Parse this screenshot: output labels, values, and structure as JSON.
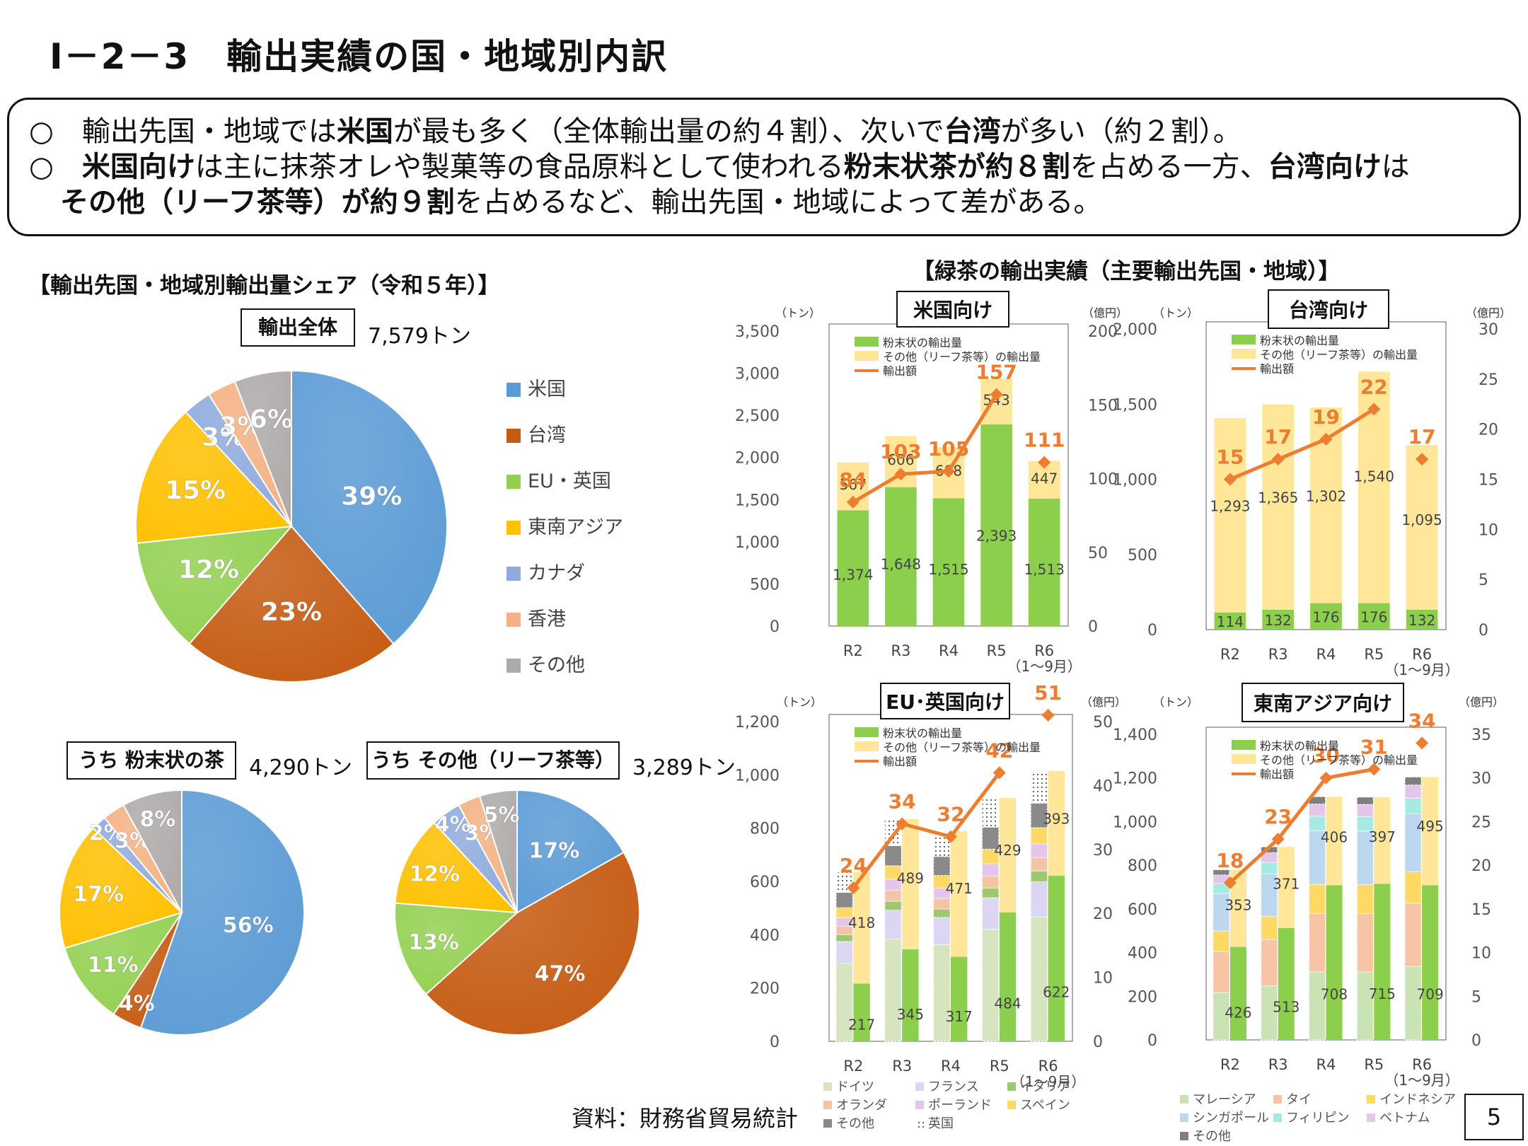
{
  "title": "Ⅰ－2－3　輸出実績の国・地域別内訳",
  "summary": {
    "l1": [
      {
        "t": "○　輸出先国・地域では",
        "b": false
      },
      {
        "t": "米国",
        "b": true
      },
      {
        "t": "が最も多く（全体輸出量の約４割）、次いで",
        "b": false
      },
      {
        "t": "台湾",
        "b": true
      },
      {
        "t": "が多い（約２割）。",
        "b": false
      }
    ],
    "l2": [
      {
        "t": "○　",
        "b": false
      },
      {
        "t": "米国向け",
        "b": true
      },
      {
        "t": "は主に抹茶オレや製菓等の食品原料として使われる",
        "b": false
      },
      {
        "t": "粉末状茶が約８割",
        "b": true
      },
      {
        "t": "を占める一方、",
        "b": false
      },
      {
        "t": "台湾向け",
        "b": true
      },
      {
        "t": "は",
        "b": false
      }
    ],
    "l3": [
      {
        "t": "その他（リーフ茶等）が約９割",
        "b": true
      },
      {
        "t": "を占めるなど、輸出先国・地域によって差がある。",
        "b": false
      }
    ]
  },
  "colors": {
    "us": "#5b9bd5",
    "tw": "#c55a11",
    "eu": "#92d050",
    "sea": "#ffc000",
    "ca": "#8faadc",
    "hk": "#f4b183",
    "oth": "#aeaaaa",
    "powder": "#8ccf4d",
    "other": "#ffe699",
    "line": "#ed7d31",
    "value_label": "#ed7d31"
  },
  "share": {
    "title": "【輸出先国・地域別輸出量シェア（令和５年）】",
    "legend": [
      "米国",
      "台湾",
      "EU・英国",
      "東南アジア",
      "カナダ",
      "香港",
      "その他"
    ],
    "total": {
      "label": "輸出全体",
      "amount": "7,579トン"
    },
    "powder": {
      "label": "うち 粉末状の茶",
      "amount": "4,290トン"
    },
    "leaf": {
      "label": "うち その他（リーフ茶等）",
      "amount": "3,289トン"
    }
  },
  "exports": {
    "title": "【緑茶の輸出実績（主要輸出先国・地域）】",
    "legend_powder": "粉末状の輸出量",
    "legend_other": "その他（リーフ茶等）の輸出量",
    "legend_amount": "輸出額",
    "unit_left": "（トン）",
    "unit_right": "（億円）",
    "r6_note": "（1～9月）"
  },
  "eu_legend": [
    "ドイツ",
    "フランス",
    "イタリア",
    "オランダ",
    "ポーランド",
    "スペイン",
    "その他",
    "英国"
  ],
  "sea_legend": [
    "マレーシア",
    "タイ",
    "インドネシア",
    "シンガポール",
    "フィリピン",
    "ベトナム",
    "その他"
  ],
  "chart_data": [
    {
      "type": "pie",
      "title": "輸出全体",
      "categories": [
        "米国",
        "台湾",
        "EU・英国",
        "東南アジア",
        "カナダ",
        "香港",
        "その他"
      ],
      "values": [
        39,
        23,
        12,
        15,
        3,
        3,
        6
      ],
      "labels": [
        "39%",
        "23%",
        "12%",
        "15%",
        "3%",
        "3%",
        "6%"
      ]
    },
    {
      "type": "pie",
      "title": "うち 粉末状の茶",
      "categories": [
        "米国",
        "台湾",
        "EU・英国",
        "東南アジア",
        "カナダ",
        "香港",
        "その他"
      ],
      "values": [
        56,
        4,
        11,
        17,
        2,
        3,
        8
      ],
      "labels": [
        "56%",
        "4%",
        "11%",
        "17%",
        "2%",
        "3%",
        "8%"
      ]
    },
    {
      "type": "pie",
      "title": "うち その他（リーフ茶等）",
      "categories": [
        "米国",
        "台湾",
        "EU・英国",
        "東南アジア",
        "カナダ",
        "香港",
        "その他"
      ],
      "values": [
        17,
        47,
        13,
        12,
        4,
        3,
        5
      ],
      "labels": [
        "17%",
        "47%",
        "13%",
        "12%",
        "4%",
        "3%",
        "5%"
      ]
    },
    {
      "type": "bar",
      "stacked": true,
      "title": "米国向け",
      "categories": [
        "R2",
        "R3",
        "R4",
        "R5",
        "R6"
      ],
      "series": [
        {
          "name": "粉末状の輸出量",
          "values": [
            1374,
            1648,
            1515,
            2393,
            1513
          ]
        },
        {
          "name": "その他（リーフ茶等）の輸出量",
          "values": [
            567,
            606,
            608,
            543,
            447
          ]
        }
      ],
      "line": {
        "name": "輸出額",
        "values": [
          84,
          103,
          105,
          157,
          111
        ]
      },
      "ylim": [
        0,
        3500
      ],
      "yticks": [
        0,
        500,
        1000,
        1500,
        2000,
        2500,
        3000,
        3500
      ],
      "y2lim": [
        0,
        200
      ],
      "y2ticks": [
        0,
        50,
        100,
        150,
        200
      ]
    },
    {
      "type": "bar",
      "stacked": true,
      "title": "台湾向け",
      "categories": [
        "R2",
        "R3",
        "R4",
        "R5",
        "R6"
      ],
      "series": [
        {
          "name": "粉末状の輸出量",
          "values": [
            114,
            132,
            176,
            176,
            132
          ]
        },
        {
          "name": "その他（リーフ茶等）の輸出量",
          "values": [
            1293,
            1365,
            1302,
            1540,
            1095
          ]
        }
      ],
      "line": {
        "name": "輸出額",
        "values": [
          15,
          17,
          19,
          22,
          17
        ]
      },
      "ylim": [
        0,
        2000
      ],
      "yticks": [
        0,
        500,
        1000,
        1500,
        2000
      ],
      "y2lim": [
        0,
        30
      ],
      "y2ticks": [
        0,
        5,
        10,
        15,
        20,
        25,
        30
      ]
    },
    {
      "type": "bar",
      "stacked": true,
      "title": "EU･英国向け",
      "categories": [
        "R2",
        "R3",
        "R4",
        "R5",
        "R6"
      ],
      "series": [
        {
          "name": "粉末状の輸出量",
          "values": [
            217,
            345,
            317,
            484,
            622
          ]
        },
        {
          "name": "その他（リーフ茶等）の輸出量",
          "values": [
            418,
            489,
            471,
            429,
            393
          ]
        }
      ],
      "line": {
        "name": "輸出額",
        "values": [
          24,
          34,
          32,
          42,
          51
        ]
      },
      "ylim": [
        0,
        1200
      ],
      "yticks": [
        0,
        200,
        400,
        600,
        800,
        1000,
        1200
      ],
      "y2lim": [
        0,
        50
      ],
      "y2ticks": [
        0,
        10,
        20,
        30,
        40,
        50
      ]
    },
    {
      "type": "bar",
      "stacked": true,
      "title": "東南アジア向け",
      "categories": [
        "R2",
        "R3",
        "R4",
        "R5",
        "R6"
      ],
      "series": [
        {
          "name": "粉末状の輸出量",
          "values": [
            426,
            513,
            708,
            715,
            709
          ]
        },
        {
          "name": "その他（リーフ茶等）の輸出量",
          "values": [
            353,
            371,
            406,
            397,
            495
          ]
        }
      ],
      "line": {
        "name": "輸出額",
        "values": [
          18,
          23,
          30,
          31,
          34
        ]
      },
      "ylim": [
        0,
        1400
      ],
      "yticks": [
        0,
        200,
        400,
        600,
        800,
        1000,
        1200,
        1400
      ],
      "y2lim": [
        0,
        35
      ],
      "y2ticks": [
        0,
        5,
        10,
        15,
        20,
        25,
        30,
        35
      ]
    }
  ],
  "source": "資料：財務省貿易統計",
  "page_number": "5"
}
